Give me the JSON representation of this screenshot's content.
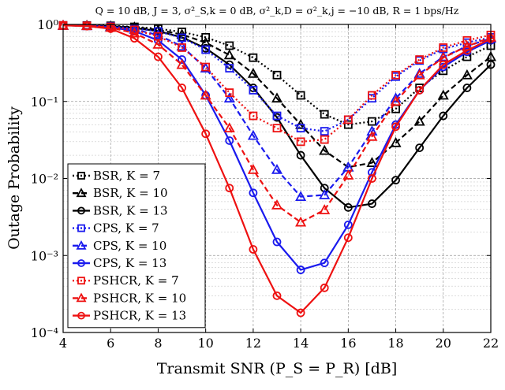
{
  "chart_data": {
    "type": "line",
    "title": "Q = 10 dB, J = 3, σ²_S,k = 0 dB, σ²_k,D = σ²_k,j = −10 dB, R = 1 bps/Hz",
    "xlabel": "Transmit SNR (P_S = P_R) [dB]",
    "ylabel": "Outage Probability",
    "xlim": [
      4,
      22
    ],
    "ylim": [
      0.0001,
      1
    ],
    "yscale": "log",
    "grid": true,
    "legend_position": "bottom-left",
    "x_ticks": [
      "4",
      "6",
      "8",
      "10",
      "12",
      "14",
      "16",
      "18",
      "20",
      "22"
    ],
    "y_ticks": [
      "10⁰",
      "10⁻¹",
      "10⁻²",
      "10⁻³",
      "10⁻⁴"
    ],
    "x": [
      4,
      5,
      6,
      7,
      8,
      9,
      10,
      11,
      12,
      13,
      14,
      15,
      16,
      17,
      18,
      19,
      20,
      21,
      22
    ],
    "series": [
      {
        "name": "BSR, K = 7",
        "color": "#000000",
        "dash": "dot",
        "marker": "square",
        "values": [
          0.97,
          0.97,
          0.96,
          0.93,
          0.88,
          0.8,
          0.68,
          0.53,
          0.37,
          0.22,
          0.12,
          0.068,
          0.05,
          0.055,
          0.08,
          0.15,
          0.25,
          0.38,
          0.53
        ]
      },
      {
        "name": "BSR, K = 10",
        "color": "#000000",
        "dash": "dash",
        "marker": "triangle",
        "values": [
          0.97,
          0.97,
          0.95,
          0.92,
          0.85,
          0.74,
          0.58,
          0.4,
          0.23,
          0.11,
          0.05,
          0.023,
          0.014,
          0.016,
          0.029,
          0.055,
          0.12,
          0.22,
          0.38
        ]
      },
      {
        "name": "BSR, K = 13",
        "color": "#000000",
        "dash": "solid",
        "marker": "circle",
        "values": [
          0.97,
          0.96,
          0.95,
          0.9,
          0.82,
          0.68,
          0.49,
          0.3,
          0.15,
          0.062,
          0.02,
          0.0075,
          0.0042,
          0.0047,
          0.0095,
          0.025,
          0.065,
          0.15,
          0.3
        ]
      },
      {
        "name": "CPS, K = 7",
        "color": "#1a1aee",
        "dash": "dot",
        "marker": "square",
        "values": [
          0.97,
          0.96,
          0.94,
          0.89,
          0.81,
          0.67,
          0.47,
          0.27,
          0.14,
          0.065,
          0.045,
          0.041,
          0.058,
          0.11,
          0.21,
          0.34,
          0.48,
          0.58,
          0.68
        ]
      },
      {
        "name": "CPS, K = 10",
        "color": "#1a1aee",
        "dash": "dash",
        "marker": "triangle",
        "values": [
          0.97,
          0.96,
          0.93,
          0.86,
          0.73,
          0.52,
          0.27,
          0.11,
          0.036,
          0.013,
          0.0058,
          0.0061,
          0.014,
          0.041,
          0.11,
          0.23,
          0.38,
          0.52,
          0.66
        ]
      },
      {
        "name": "CPS, K = 13",
        "color": "#1a1aee",
        "dash": "solid",
        "marker": "circle",
        "values": [
          0.97,
          0.96,
          0.92,
          0.82,
          0.62,
          0.35,
          0.12,
          0.031,
          0.0065,
          0.0015,
          0.00065,
          0.0008,
          0.0025,
          0.012,
          0.05,
          0.14,
          0.28,
          0.44,
          0.62
        ]
      },
      {
        "name": "PSHCR, K = 7",
        "color": "#ee1111",
        "dash": "dot",
        "marker": "square",
        "values": [
          0.97,
          0.96,
          0.93,
          0.85,
          0.7,
          0.5,
          0.28,
          0.13,
          0.065,
          0.045,
          0.03,
          0.032,
          0.058,
          0.12,
          0.22,
          0.35,
          0.5,
          0.62,
          0.73
        ]
      },
      {
        "name": "PSHCR, K = 10",
        "color": "#ee1111",
        "dash": "dash",
        "marker": "triangle",
        "values": [
          0.97,
          0.96,
          0.91,
          0.77,
          0.55,
          0.3,
          0.12,
          0.045,
          0.013,
          0.0045,
          0.0027,
          0.0039,
          0.011,
          0.035,
          0.1,
          0.22,
          0.37,
          0.52,
          0.68
        ]
      },
      {
        "name": "PSHCR, K = 13",
        "color": "#ee1111",
        "dash": "solid",
        "marker": "circle",
        "values": [
          0.97,
          0.95,
          0.88,
          0.66,
          0.38,
          0.15,
          0.038,
          0.0075,
          0.0012,
          0.0003,
          0.00018,
          0.00038,
          0.0017,
          0.01,
          0.047,
          0.14,
          0.3,
          0.46,
          0.65
        ]
      }
    ]
  }
}
